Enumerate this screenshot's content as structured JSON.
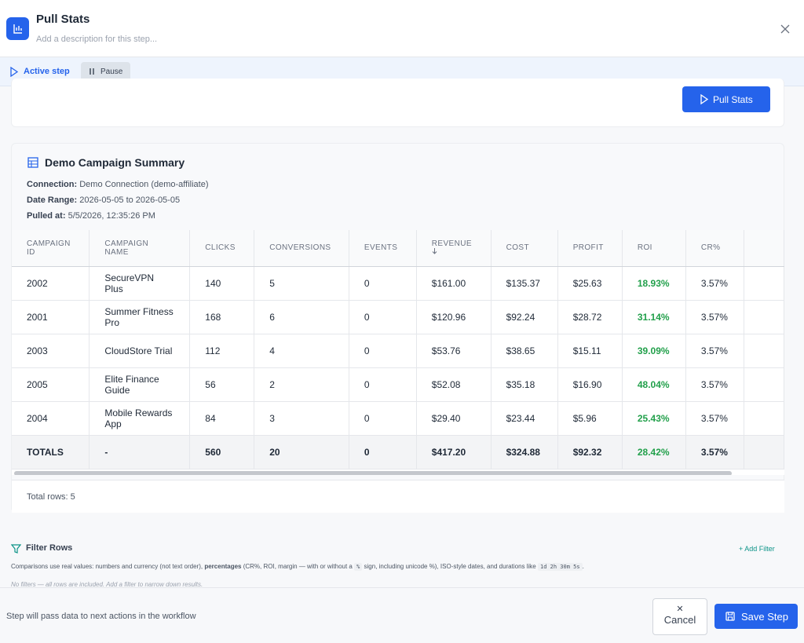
{
  "header": {
    "title": "Pull Stats",
    "description": "Add a description for this step..."
  },
  "status": {
    "label": "Active step",
    "pause": "Pause"
  },
  "run_button": "Pull Stats",
  "summary": {
    "title": "Demo Campaign Summary",
    "meta": [
      {
        "label": "Connection:",
        "value": "Demo Connection (demo-affiliate)"
      },
      {
        "label": "Date Range:",
        "value": "2026-05-05 to 2026-05-05"
      },
      {
        "label": "Pulled at:",
        "value": "5/5/2026, 12:35:26 PM"
      }
    ],
    "table": {
      "columns": [
        "CAMPAIGN ID",
        "CAMPAIGN NAME",
        "CLICKS",
        "CONVERSIONS",
        "EVENTS",
        "REVENUE",
        "COST",
        "PROFIT",
        "ROI",
        "CR%"
      ],
      "rows": [
        [
          "2002",
          "SecureVPN Plus",
          "140",
          "5",
          "0",
          "$161.00",
          "$135.37",
          "$25.63",
          "18.93%",
          "3.57%"
        ],
        [
          "2001",
          "Summer Fitness Pro",
          "168",
          "6",
          "0",
          "$120.96",
          "$92.24",
          "$28.72",
          "31.14%",
          "3.57%"
        ],
        [
          "2003",
          "CloudStore Trial",
          "112",
          "4",
          "0",
          "$53.76",
          "$38.65",
          "$15.11",
          "39.09%",
          "3.57%"
        ],
        [
          "2005",
          "Elite Finance Guide",
          "56",
          "2",
          "0",
          "$52.08",
          "$35.18",
          "$16.90",
          "48.04%",
          "3.57%"
        ],
        [
          "2004",
          "Mobile Rewards App",
          "84",
          "3",
          "0",
          "$29.40",
          "$23.44",
          "$5.96",
          "25.43%",
          "3.57%"
        ]
      ],
      "totals": [
        "TOTALS",
        "-",
        "560",
        "20",
        "0",
        "$417.20",
        "$324.88",
        "$92.32",
        "28.42%",
        "3.57%"
      ]
    },
    "footer": "Total rows: 5"
  },
  "filter": {
    "title": "Filter Rows",
    "add": "Add Filter",
    "description": [
      "Comparisons use real values: numbers and currency (not text order), ",
      "percentages",
      " (CR%, ROI, margin — with or without a ",
      "%",
      " sign, including unicode %), ISO-style dates, and durations like ",
      "1d 2h 30m 5s",
      "."
    ],
    "empty": "No filters — all rows are included. Add a filter to narrow down results."
  },
  "bottom": {
    "note": "Step will pass data to next actions in the workflow",
    "cancel": "Cancel",
    "save": "Save Step"
  }
}
